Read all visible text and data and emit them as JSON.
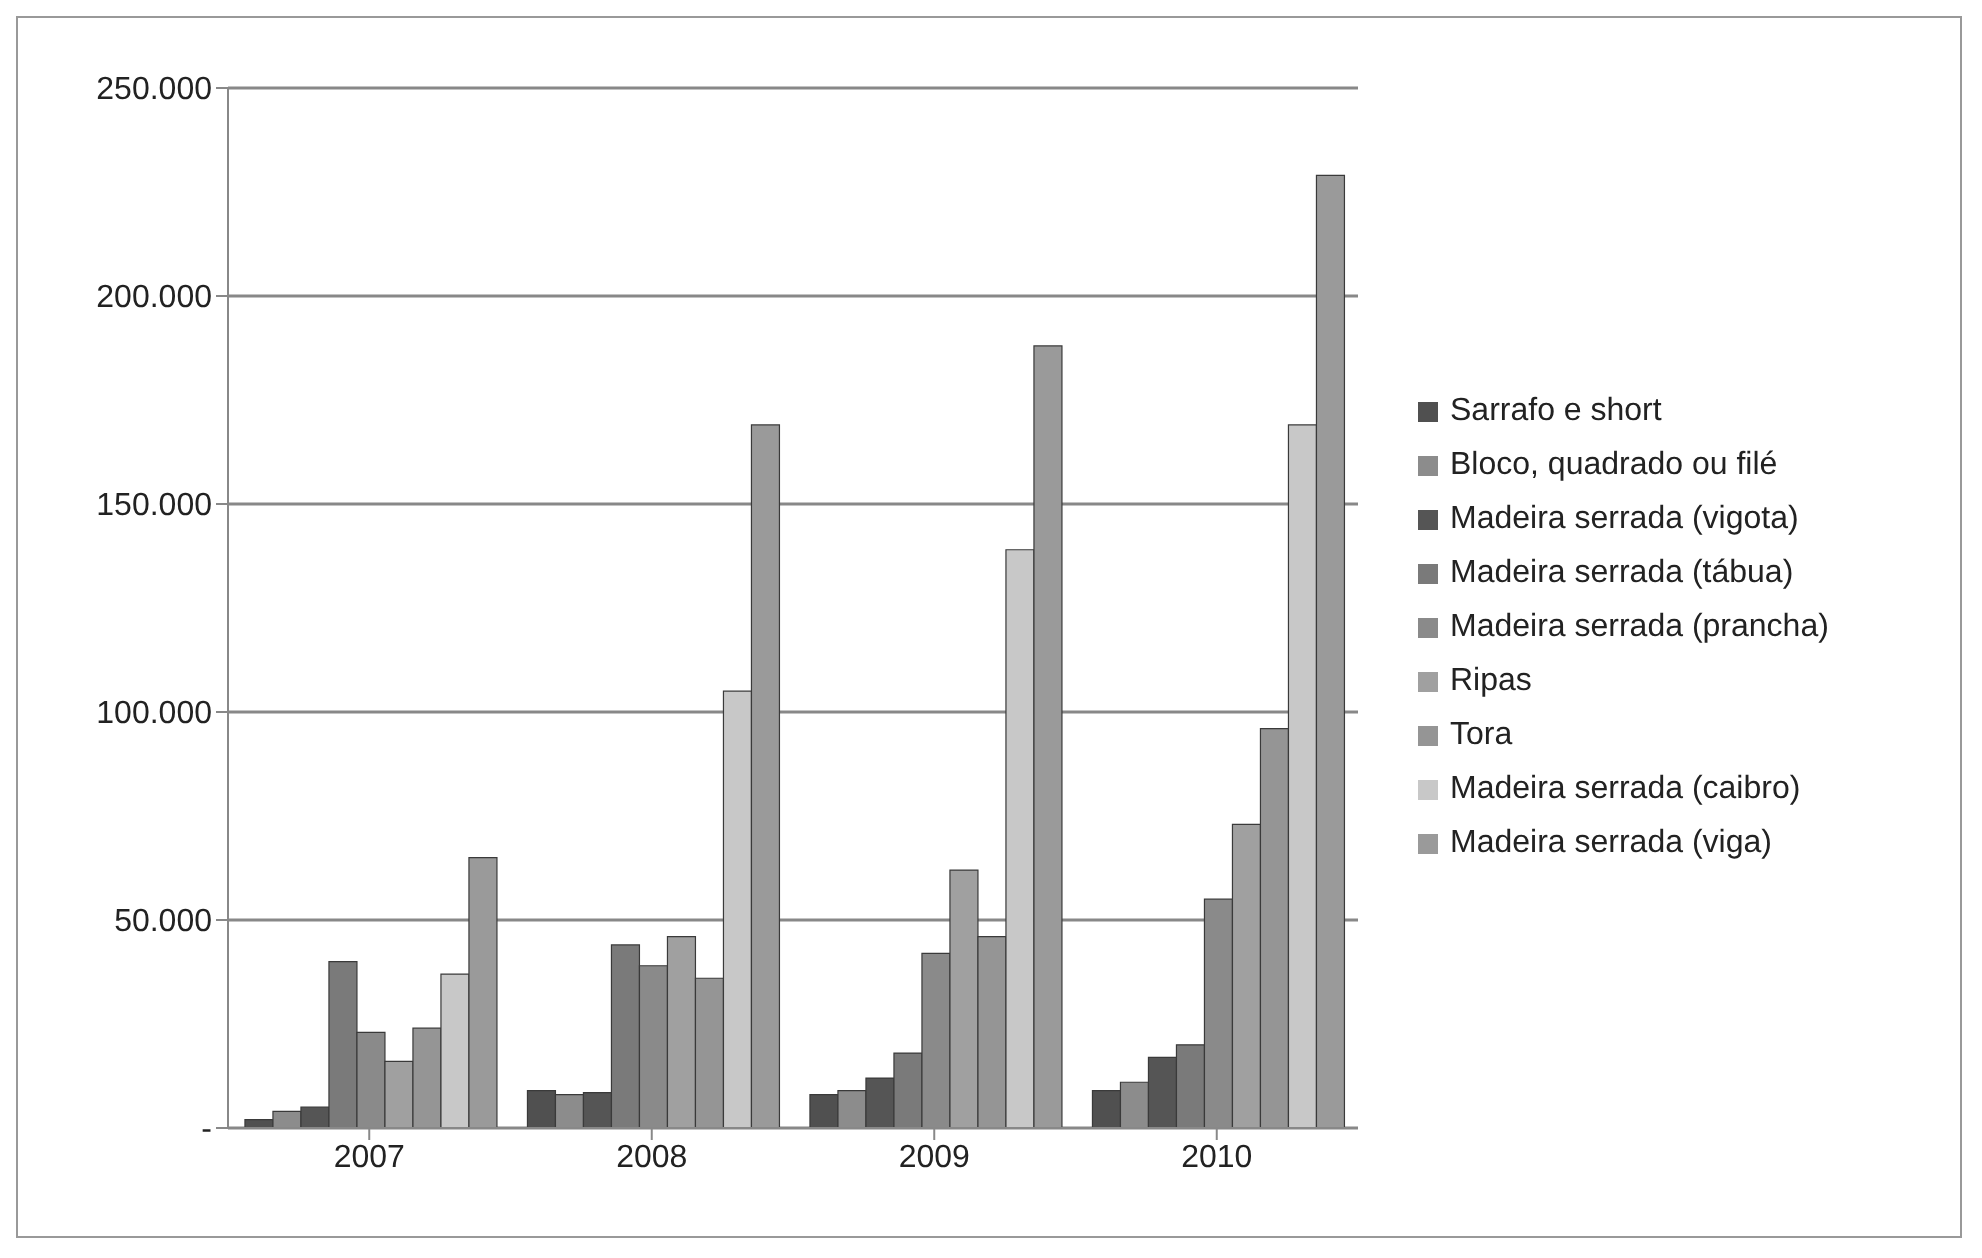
{
  "chart_data": {
    "type": "bar",
    "categories": [
      "2007",
      "2008",
      "2009",
      "2010"
    ],
    "series": [
      {
        "name": "Sarrafo e short",
        "color": "#505050",
        "values": [
          2000,
          9000,
          8000,
          9000
        ]
      },
      {
        "name": "Bloco, quadrado ou filé",
        "color": "#8c8c8c",
        "values": [
          4000,
          8000,
          9000,
          11000
        ]
      },
      {
        "name": "Madeira serrada (vigota)",
        "color": "#555555",
        "values": [
          5000,
          8500,
          12000,
          17000
        ]
      },
      {
        "name": "Madeira serrada (tábua)",
        "color": "#7a7a7a",
        "values": [
          40000,
          44000,
          18000,
          20000
        ]
      },
      {
        "name": "Madeira serrada (prancha)",
        "color": "#8a8a8a",
        "values": [
          23000,
          39000,
          42000,
          55000
        ]
      },
      {
        "name": "Ripas",
        "color": "#a0a0a0",
        "values": [
          16000,
          46000,
          62000,
          73000
        ]
      },
      {
        "name": "Tora",
        "color": "#959595",
        "values": [
          24000,
          36000,
          46000,
          96000
        ]
      },
      {
        "name": "Madeira serrada (caibro)",
        "color": "#c8c8c8",
        "values": [
          37000,
          105000,
          139000,
          169000
        ]
      },
      {
        "name": "Madeira serrada (viga)",
        "color": "#9a9a9a",
        "values": [
          65000,
          169000,
          188000,
          229000
        ]
      }
    ],
    "ylim": [
      0,
      250000
    ],
    "yticks": [
      {
        "value": 0,
        "label": "-"
      },
      {
        "value": 50000,
        "label": "50.000"
      },
      {
        "value": 100000,
        "label": "100.000"
      },
      {
        "value": 150000,
        "label": "150.000"
      },
      {
        "value": 200000,
        "label": "200.000"
      },
      {
        "value": 250000,
        "label": "250.000"
      }
    ],
    "grid": "y",
    "legend": "right"
  }
}
